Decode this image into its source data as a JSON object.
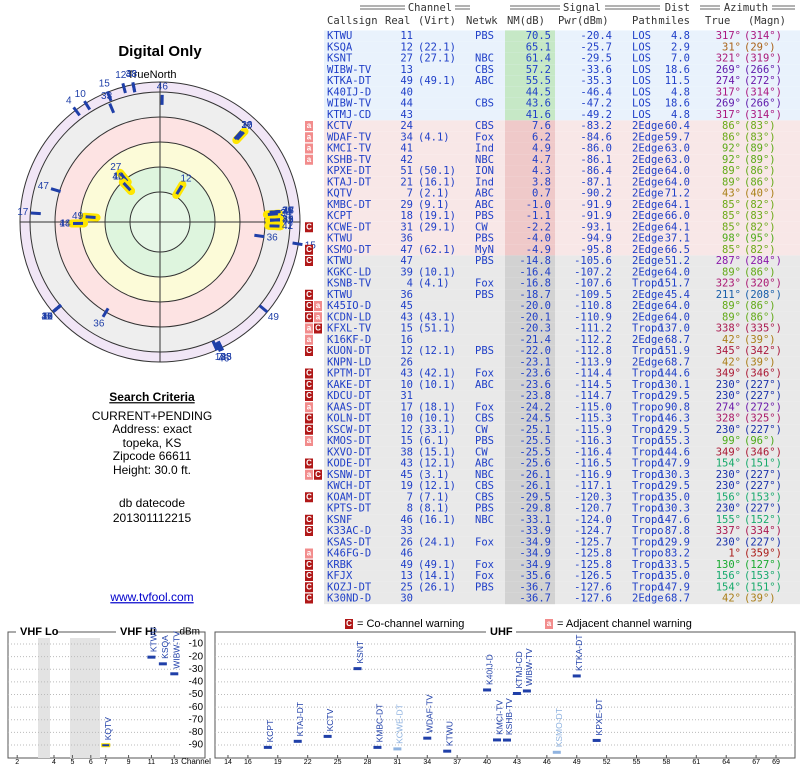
{
  "polar": {
    "title": "Digital Only",
    "north_label": "TrueNorth",
    "north_mark": "N"
  },
  "search": {
    "heading": "Search Criteria",
    "lines": [
      "CURRENT+PENDING",
      "Address: exact",
      "topeka, KS",
      "Zipcode 66611",
      "Height: 30.0 ft."
    ],
    "datecode_label": "db datecode",
    "datecode": "201301112215",
    "link": "www.tvfool.com"
  },
  "table": {
    "header": {
      "groups": [
        "Channel",
        "Signal",
        "Azimuth"
      ],
      "dist_top": "Dist",
      "columns": [
        "Callsign",
        "Real",
        "(Virt)",
        "Netwk",
        "NM(dB)",
        "Pwr(dBm)",
        "Path",
        "miles",
        "True",
        "(Magn)"
      ]
    },
    "rows": [
      {
        "callsign": "KTWU",
        "real": 11,
        "netwk": "PBS",
        "nm": 70.5,
        "pwr": -20.4,
        "path": "LOS",
        "dist": 4.8,
        "true": {
          "value": 317,
          "label": "317°"
        },
        "magn": "(314°)"
      },
      {
        "callsign": "KSQA",
        "real": 12,
        "virt": "(22.1)",
        "nm": 65.1,
        "pwr": -25.7,
        "path": "LOS",
        "dist": 2.9,
        "true": {
          "value": 31,
          "label": "31°"
        },
        "magn": "(29°)"
      },
      {
        "callsign": "KSNT",
        "real": 27,
        "virt": "(27.1)",
        "netwk": "NBC",
        "nm": 61.4,
        "pwr": -29.5,
        "path": "LOS",
        "dist": {
          "value": 7,
          "label": "7.0"
        },
        "true": {
          "value": 321,
          "label": "321°"
        },
        "magn": "(319°)"
      },
      {
        "callsign": "WIBW-TV",
        "real": 13,
        "netwk": "CBS",
        "nm": 57.2,
        "pwr": -33.6,
        "path": "LOS",
        "dist": 18.6,
        "true": {
          "value": 269,
          "label": "269°"
        },
        "magn": "(266°)"
      },
      {
        "callsign": "KTKA-DT",
        "real": 49,
        "virt": "(49.1)",
        "netwk": "ABC",
        "nm": 55.5,
        "pwr": -35.3,
        "path": "LOS",
        "dist": 11.5,
        "true": {
          "value": 274,
          "label": "274°"
        },
        "magn": "(272°)"
      },
      {
        "callsign": "K40IJ-D",
        "real": 40,
        "nm": 44.5,
        "pwr": -46.4,
        "path": "LOS",
        "dist": 4.8,
        "true": {
          "value": 317,
          "label": "317°"
        },
        "magn": "(314°)"
      },
      {
        "callsign": "WIBW-TV",
        "real": 44,
        "netwk": "CBS",
        "nm": 43.6,
        "pwr": -47.2,
        "path": "LOS",
        "dist": 18.6,
        "true": {
          "value": 269,
          "label": "269°"
        },
        "magn": "(266°)"
      },
      {
        "callsign": "KTMJ-CD",
        "real": 43,
        "nm": 41.6,
        "pwr": -49.2,
        "path": "LOS",
        "dist": 4.8,
        "true": {
          "value": 317,
          "label": "317°"
        },
        "magn": "(314°)"
      },
      {
        "callsign": "KCTV",
        "real": 24,
        "netwk": "CBS",
        "nm": 7.6,
        "pwr": -83.2,
        "path": "2Edge",
        "dist": 60.4,
        "true": {
          "value": 86,
          "label": "86°"
        },
        "magn": "(83°)",
        "warn": [
          "a"
        ]
      },
      {
        "callsign": "WDAF-TV",
        "real": 34,
        "virt": "(4.1)",
        "netwk": "Fox",
        "nm": 6.2,
        "pwr": -84.6,
        "path": "2Edge",
        "dist": 59.7,
        "true": {
          "value": 86,
          "label": "86°"
        },
        "magn": "(83°)",
        "warn": [
          "a"
        ]
      },
      {
        "callsign": "KMCI-TV",
        "real": 41,
        "netwk": "Ind",
        "nm": 4.9,
        "pwr": {
          "value": -86,
          "label": "-86.0"
        },
        "path": "2Edge",
        "dist": {
          "value": 63,
          "label": "63.0"
        },
        "true": {
          "value": 92,
          "label": "92°"
        },
        "magn": "(89°)",
        "warn": [
          "a"
        ]
      },
      {
        "callsign": "KSHB-TV",
        "real": 42,
        "netwk": "NBC",
        "nm": 4.7,
        "pwr": -86.1,
        "path": "2Edge",
        "dist": {
          "value": 63,
          "label": "63.0"
        },
        "true": {
          "value": 92,
          "label": "92°"
        },
        "magn": "(89°)",
        "warn": [
          "a"
        ]
      },
      {
        "callsign": "KPXE-DT",
        "real": 51,
        "virt": "(50.1)",
        "netwk": "ION",
        "nm": 4.3,
        "pwr": -86.4,
        "path": "2Edge",
        "dist": {
          "value": 64,
          "label": "64.0"
        },
        "true": {
          "value": 89,
          "label": "89°"
        },
        "magn": "(86°)"
      },
      {
        "callsign": "KTAJ-DT",
        "real": 21,
        "virt": "(16.1)",
        "netwk": "Ind",
        "nm": 3.8,
        "pwr": -87.1,
        "path": "2Edge",
        "dist": {
          "value": 64,
          "label": "64.0"
        },
        "true": {
          "value": 89,
          "label": "89°"
        },
        "magn": "(86°)"
      },
      {
        "callsign": "KQTV",
        "real": 7,
        "virt": "(2.1)",
        "netwk": "ABC",
        "nm": 0.7,
        "pwr": -90.2,
        "path": "2Edge",
        "dist": 71.2,
        "true": {
          "value": 43,
          "label": "43°"
        },
        "magn": "(40°)"
      },
      {
        "callsign": "KMBC-DT",
        "real": 29,
        "virt": "(9.1)",
        "netwk": "ABC",
        "nm": {
          "value": -1,
          "label": "-1.0"
        },
        "pwr": -91.9,
        "path": "2Edge",
        "dist": 64.1,
        "true": {
          "value": 85,
          "label": "85°"
        },
        "magn": "(82°)"
      },
      {
        "callsign": "KCPT",
        "real": 18,
        "virt": "(19.1)",
        "netwk": "PBS",
        "nm": -1.1,
        "pwr": -91.9,
        "path": "2Edge",
        "dist": {
          "value": 66,
          "label": "66.0"
        },
        "true": {
          "value": 85,
          "label": "85°"
        },
        "magn": "(83°)"
      },
      {
        "callsign": "KCWE-DT",
        "real": 31,
        "virt": "(29.1)",
        "netwk": "CW",
        "nm": -2.2,
        "pwr": -93.1,
        "path": "2Edge",
        "dist": 64.1,
        "true": {
          "value": 85,
          "label": "85°"
        },
        "magn": "(82°)",
        "warn": [
          "C"
        ]
      },
      {
        "callsign": "KTWU",
        "real": 36,
        "netwk": "PBS",
        "nm": {
          "value": -4,
          "label": "-4.0"
        },
        "pwr": -94.9,
        "path": "2Edge",
        "dist": 37.1,
        "true": {
          "value": 98,
          "label": "98°"
        },
        "magn": "(95°)"
      },
      {
        "callsign": "KSMO-DT",
        "real": 47,
        "virt": "(62.1)",
        "netwk": "MyN",
        "nm": -4.9,
        "pwr": -95.8,
        "path": "2Edge",
        "dist": 66.5,
        "true": {
          "value": 85,
          "label": "85°"
        },
        "magn": "(82°)",
        "warn": [
          "C"
        ]
      },
      {
        "callsign": "KTWU",
        "real": 47,
        "netwk": "PBS",
        "nm": -14.8,
        "pwr": -105.6,
        "path": "2Edge",
        "dist": 51.2,
        "true": {
          "value": 287,
          "label": "287°"
        },
        "magn": "(284°)",
        "warn": [
          "C"
        ]
      },
      {
        "callsign": "KGKC-LD",
        "real": 39,
        "virt": "(10.1)",
        "nm": -16.4,
        "pwr": -107.2,
        "path": "2Edge",
        "dist": {
          "value": 64,
          "label": "64.0"
        },
        "true": {
          "value": 89,
          "label": "89°"
        },
        "magn": "(86°)"
      },
      {
        "callsign": "KSNB-TV",
        "real": 4,
        "virt": "(4.1)",
        "netwk": "Fox",
        "nm": -16.8,
        "pwr": -107.6,
        "path": "Tropo",
        "dist": 151.7,
        "true": {
          "value": 323,
          "label": "323°"
        },
        "magn": "(320°)"
      },
      {
        "callsign": "KTWU",
        "real": 36,
        "netwk": "PBS",
        "nm": -18.7,
        "pwr": -109.5,
        "path": "2Edge",
        "dist": 45.4,
        "true": {
          "value": 211,
          "label": "211°"
        },
        "magn": "(208°)",
        "warn": [
          "C"
        ]
      },
      {
        "callsign": "K45IO-D",
        "real": 45,
        "nm": {
          "value": -20,
          "label": "-20.0"
        },
        "pwr": -110.8,
        "path": "2Edge",
        "dist": {
          "value": 64,
          "label": "64.0"
        },
        "true": {
          "value": 89,
          "label": "89°"
        },
        "magn": "(86°)",
        "warn": [
          "C",
          "a"
        ]
      },
      {
        "callsign": "KCDN-LD",
        "real": 43,
        "virt": "(43.1)",
        "nm": -20.1,
        "pwr": -110.9,
        "path": "2Edge",
        "dist": {
          "value": 64,
          "label": "64.0"
        },
        "true": {
          "value": 89,
          "label": "89°"
        },
        "magn": "(86°)",
        "warn": [
          "C",
          "a"
        ]
      },
      {
        "callsign": "KFXL-TV",
        "real": 15,
        "virt": "(51.1)",
        "nm": -20.3,
        "pwr": -111.2,
        "path": "Tropo",
        "dist": {
          "value": 137,
          "label": "137.0"
        },
        "true": {
          "value": 338,
          "label": "338°"
        },
        "magn": "(335°)",
        "warn": [
          "a",
          "C"
        ]
      },
      {
        "callsign": "K16KF-D",
        "real": 16,
        "nm": -21.4,
        "pwr": -112.2,
        "path": "2Edge",
        "dist": 68.7,
        "true": {
          "value": 42,
          "label": "42°"
        },
        "magn": "(39°)",
        "warn": [
          "a"
        ]
      },
      {
        "callsign": "KUON-DT",
        "real": 12,
        "virt": "(12.1)",
        "netwk": "PBS",
        "nm": {
          "value": -22,
          "label": "-22.0"
        },
        "pwr": -112.8,
        "path": "Tropo",
        "dist": 151.9,
        "true": {
          "value": 345,
          "label": "345°"
        },
        "magn": "(342°)",
        "warn": [
          "C"
        ]
      },
      {
        "callsign": "KNPN-LD",
        "real": 26,
        "nm": -23.1,
        "pwr": -113.9,
        "path": "2Edge",
        "dist": 68.7,
        "true": {
          "value": 42,
          "label": "42°"
        },
        "magn": "(39°)"
      },
      {
        "callsign": "KPTM-DT",
        "real": 43,
        "virt": "(42.1)",
        "netwk": "Fox",
        "nm": -23.6,
        "pwr": -114.4,
        "path": "Tropo",
        "dist": 144.6,
        "true": {
          "value": 349,
          "label": "349°"
        },
        "magn": "(346°)",
        "warn": [
          "C"
        ]
      },
      {
        "callsign": "KAKE-DT",
        "real": 10,
        "virt": "(10.1)",
        "netwk": "ABC",
        "nm": -23.6,
        "pwr": -114.5,
        "path": "Tropo",
        "dist": 130.1,
        "true": {
          "value": 230,
          "label": "230°"
        },
        "magn": "(227°)",
        "warn": [
          "C"
        ]
      },
      {
        "callsign": "KDCU-DT",
        "real": 31,
        "nm": -23.8,
        "pwr": -114.7,
        "path": "Tropo",
        "dist": 129.5,
        "true": {
          "value": 230,
          "label": "230°"
        },
        "magn": "(227°)",
        "warn": [
          "C"
        ]
      },
      {
        "callsign": "KAAS-DT",
        "real": 17,
        "virt": "(18.1)",
        "netwk": "Fox",
        "nm": -24.2,
        "pwr": {
          "value": -115,
          "label": "-115.0"
        },
        "path": "Tropo",
        "dist": 90.8,
        "true": {
          "value": 274,
          "label": "274°"
        },
        "magn": "(272°)",
        "warn": [
          "a"
        ]
      },
      {
        "callsign": "KOLN-DT",
        "real": 10,
        "virt": "(10.1)",
        "netwk": "CBS",
        "nm": -24.5,
        "pwr": -115.3,
        "path": "Tropo",
        "dist": 146.3,
        "true": {
          "value": 328,
          "label": "328°"
        },
        "magn": "(325°)",
        "warn": [
          "C"
        ]
      },
      {
        "callsign": "KSCW-DT",
        "real": 12,
        "virt": "(33.1)",
        "netwk": "CW",
        "nm": -25.1,
        "pwr": -115.9,
        "path": "Tropo",
        "dist": 129.5,
        "true": {
          "value": 230,
          "label": "230°"
        },
        "magn": "(227°)",
        "warn": [
          "C"
        ]
      },
      {
        "callsign": "KMOS-DT",
        "real": 15,
        "virt": "(6.1)",
        "netwk": "PBS",
        "nm": -25.5,
        "pwr": -116.3,
        "path": "Tropo",
        "dist": 155.3,
        "true": {
          "value": 99,
          "label": "99°"
        },
        "magn": "(96°)",
        "warn": [
          "a"
        ]
      },
      {
        "callsign": "KXVO-DT",
        "real": 38,
        "virt": "(15.1)",
        "netwk": "CW",
        "nm": -25.5,
        "pwr": -116.4,
        "path": "Tropo",
        "dist": 144.6,
        "true": {
          "value": 349,
          "label": "349°"
        },
        "magn": "(346°)"
      },
      {
        "callsign": "KODE-DT",
        "real": 43,
        "virt": "(12.1)",
        "netwk": "ABC",
        "nm": -25.6,
        "pwr": -116.5,
        "path": "Tropo",
        "dist": 147.9,
        "true": {
          "value": 154,
          "label": "154°"
        },
        "magn": "(151°)",
        "warn": [
          "C"
        ]
      },
      {
        "callsign": "KSNW-DT",
        "real": 45,
        "virt": "(3.1)",
        "netwk": "NBC",
        "nm": -26.1,
        "pwr": -116.9,
        "path": "Tropo",
        "dist": 130.3,
        "true": {
          "value": 230,
          "label": "230°"
        },
        "magn": "(227°)",
        "warn": [
          "a",
          "C"
        ]
      },
      {
        "callsign": "KWCH-DT",
        "real": 19,
        "virt": "(12.1)",
        "netwk": "CBS",
        "nm": -26.1,
        "pwr": -117.1,
        "path": "Tropo",
        "dist": 129.5,
        "true": {
          "value": 230,
          "label": "230°"
        },
        "magn": "(227°)"
      },
      {
        "callsign": "KOAM-DT",
        "real": 7,
        "virt": "(7.1)",
        "netwk": "CBS",
        "nm": -29.5,
        "pwr": -120.3,
        "path": "Tropo",
        "dist": {
          "value": 135,
          "label": "135.0"
        },
        "true": {
          "value": 156,
          "label": "156°"
        },
        "magn": "(153°)",
        "warn": [
          "C"
        ]
      },
      {
        "callsign": "KPTS-DT",
        "real": 8,
        "virt": "(8.1)",
        "netwk": "PBS",
        "nm": -29.8,
        "pwr": -120.7,
        "path": "Tropo",
        "dist": 130.3,
        "true": {
          "value": 230,
          "label": "230°"
        },
        "magn": "(227°)"
      },
      {
        "callsign": "KSNF",
        "real": 46,
        "virt": "(16.1)",
        "netwk": "NBC",
        "nm": -33.1,
        "pwr": {
          "value": -124,
          "label": "-124.0"
        },
        "path": "Tropo",
        "dist": 147.6,
        "true": {
          "value": 155,
          "label": "155°"
        },
        "magn": "(152°)",
        "warn": [
          "C"
        ]
      },
      {
        "callsign": "K33AC-D",
        "real": 33,
        "nm": -33.9,
        "pwr": -124.7,
        "path": "Tropo",
        "dist": 87.8,
        "true": {
          "value": 337,
          "label": "337°"
        },
        "magn": "(334°)",
        "warn": [
          "C"
        ]
      },
      {
        "callsign": "KSAS-DT",
        "real": 26,
        "virt": "(24.1)",
        "netwk": "Fox",
        "nm": -34.9,
        "pwr": -125.7,
        "path": "Tropo",
        "dist": 129.9,
        "true": {
          "value": 230,
          "label": "230°"
        },
        "magn": "(227°)"
      },
      {
        "callsign": "K46FG-D",
        "real": 46,
        "nm": -34.9,
        "pwr": -125.8,
        "path": "Tropo",
        "dist": 83.2,
        "true": {
          "value": 1,
          "label": "1°"
        },
        "magn": "(359°)",
        "warn": [
          "a"
        ]
      },
      {
        "callsign": "KRBK",
        "real": 49,
        "virt": "(49.1)",
        "netwk": "Fox",
        "nm": -34.9,
        "pwr": -125.8,
        "path": "Tropo",
        "dist": 133.5,
        "true": {
          "value": 130,
          "label": "130°"
        },
        "magn": "(127°)",
        "warn": [
          "C"
        ]
      },
      {
        "callsign": "KFJX",
        "real": 13,
        "virt": "(14.1)",
        "netwk": "Fox",
        "nm": -35.6,
        "pwr": -126.5,
        "path": "Tropo",
        "dist": {
          "value": 135,
          "label": "135.0"
        },
        "true": {
          "value": 156,
          "label": "156°"
        },
        "magn": "(153°)",
        "warn": [
          "C"
        ]
      },
      {
        "callsign": "KOZJ-DT",
        "real": 25,
        "virt": "(26.1)",
        "netwk": "PBS",
        "nm": -36.7,
        "pwr": -127.6,
        "path": "Tropo",
        "dist": 147.9,
        "true": {
          "value": 154,
          "label": "154°"
        },
        "magn": "(151°)",
        "warn": [
          "C"
        ]
      },
      {
        "callsign": "K30ND-D",
        "real": 30,
        "nm": -36.7,
        "pwr": -127.6,
        "path": "2Edge",
        "dist": 68.7,
        "true": {
          "value": 42,
          "label": "42°"
        },
        "magn": "(39°)",
        "warn": [
          "C"
        ]
      }
    ]
  },
  "legend": [
    {
      "symbol": "C",
      "text": "= Co-channel warning"
    },
    {
      "symbol": "a",
      "text": "= Adjacent channel warning"
    }
  ],
  "spectrum": {
    "y_label": "dBm",
    "x_label": "Channel",
    "ylim": [
      -100,
      0
    ],
    "yticks": [
      -10,
      -20,
      -30,
      -40,
      -50,
      -60,
      -70,
      -80,
      -90
    ],
    "panels": [
      {
        "label": "VHF Lo",
        "xlim": [
          1.5,
          6.5
        ],
        "xticks": [
          2,
          4,
          5,
          6
        ]
      },
      {
        "label": "VHF Hi",
        "xlim": [
          6.5,
          13.5
        ],
        "xticks": [
          7,
          9,
          11,
          13
        ]
      },
      {
        "label": "UHF",
        "xlim": [
          13.5,
          69.5
        ],
        "xticks": [
          14,
          16,
          19,
          22,
          25,
          28,
          31,
          34,
          37,
          40,
          43,
          46,
          49,
          52,
          55,
          58,
          61,
          64,
          67,
          69
        ]
      }
    ]
  }
}
